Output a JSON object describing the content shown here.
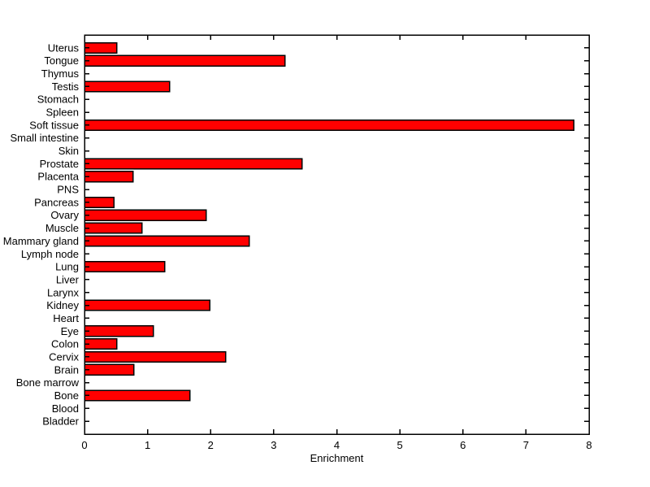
{
  "figure": {
    "background_color": "#ffffff"
  },
  "chart_data": {
    "type": "bar",
    "orientation": "horizontal",
    "title": "",
    "xlabel": "Enrichment",
    "ylabel": "",
    "categories": [
      "Uterus",
      "Tongue",
      "Thymus",
      "Testis",
      "Stomach",
      "Spleen",
      "Soft tissue",
      "Small intestine",
      "Skin",
      "Prostate",
      "Placenta",
      "PNS",
      "Pancreas",
      "Ovary",
      "Muscle",
      "Mammary gland",
      "Lymph node",
      "Lung",
      "Liver",
      "Larynx",
      "Kidney",
      "Heart",
      "Eye",
      "Colon",
      "Cervix",
      "Brain",
      "Bone marrow",
      "Bone",
      "Blood",
      "Bladder"
    ],
    "values": [
      0.51,
      3.18,
      0,
      1.35,
      0,
      0,
      7.76,
      0,
      0,
      3.45,
      0.77,
      0,
      0.47,
      1.93,
      0.91,
      2.61,
      0,
      1.27,
      0,
      0,
      1.99,
      0,
      1.09,
      0.51,
      2.24,
      0.78,
      0,
      1.67,
      0,
      0
    ],
    "xlim": [
      0,
      8
    ],
    "xticks": [
      0,
      1,
      2,
      3,
      4,
      5,
      6,
      7,
      8
    ],
    "grid": false,
    "legend": null,
    "bar_color": "#ff0000",
    "bar_edge_color": "#000000",
    "axis_color": "#000000",
    "text_color": "#000000"
  }
}
